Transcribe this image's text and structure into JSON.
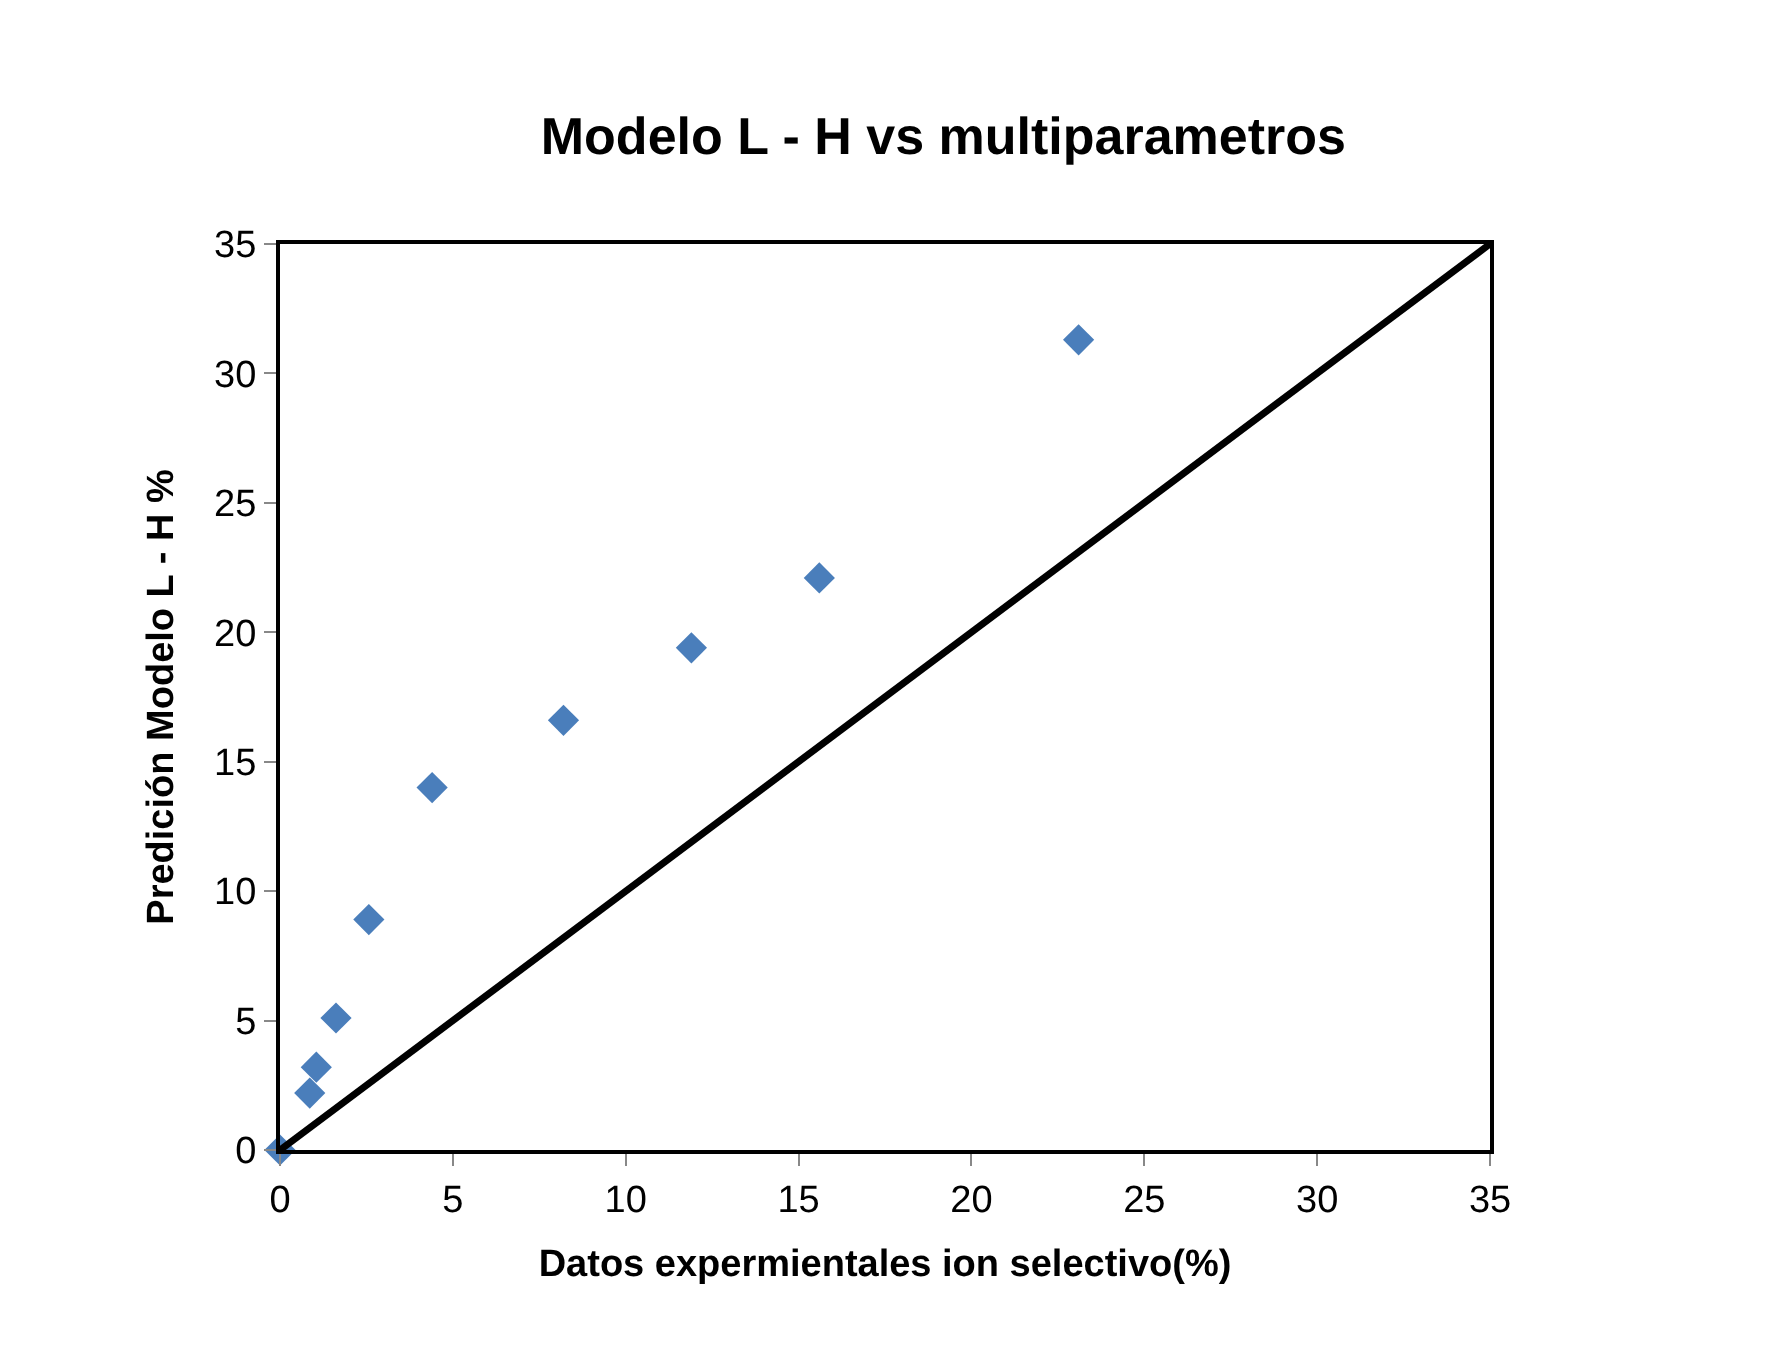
{
  "chart_data": {
    "type": "scatter",
    "title": "Modelo L - H vs multiparametros",
    "xlabel": "Datos expermientales ion selectivo(%)",
    "ylabel": "Predición Modelo L - H %",
    "xlim": [
      0,
      35
    ],
    "ylim": [
      0,
      35
    ],
    "xticks": [
      0,
      5,
      10,
      15,
      20,
      25,
      30,
      35
    ],
    "yticks": [
      0,
      5,
      10,
      15,
      20,
      25,
      30,
      35
    ],
    "marker": "diamond",
    "series": [
      {
        "color": "#4a7ebb",
        "x": [
          0,
          0.86,
          1.05,
          1.62,
          2.57,
          4.4,
          8.2,
          11.9,
          15.6,
          23.1
        ],
        "values": [
          0,
          2.2,
          3.2,
          5.1,
          8.9,
          14.0,
          16.6,
          19.4,
          22.1,
          31.3
        ]
      },
      {
        "type": "line",
        "color": "#000000",
        "x": [
          0,
          35
        ],
        "values": [
          0,
          35
        ],
        "marker": "none",
        "line_style": "solid"
      }
    ]
  }
}
